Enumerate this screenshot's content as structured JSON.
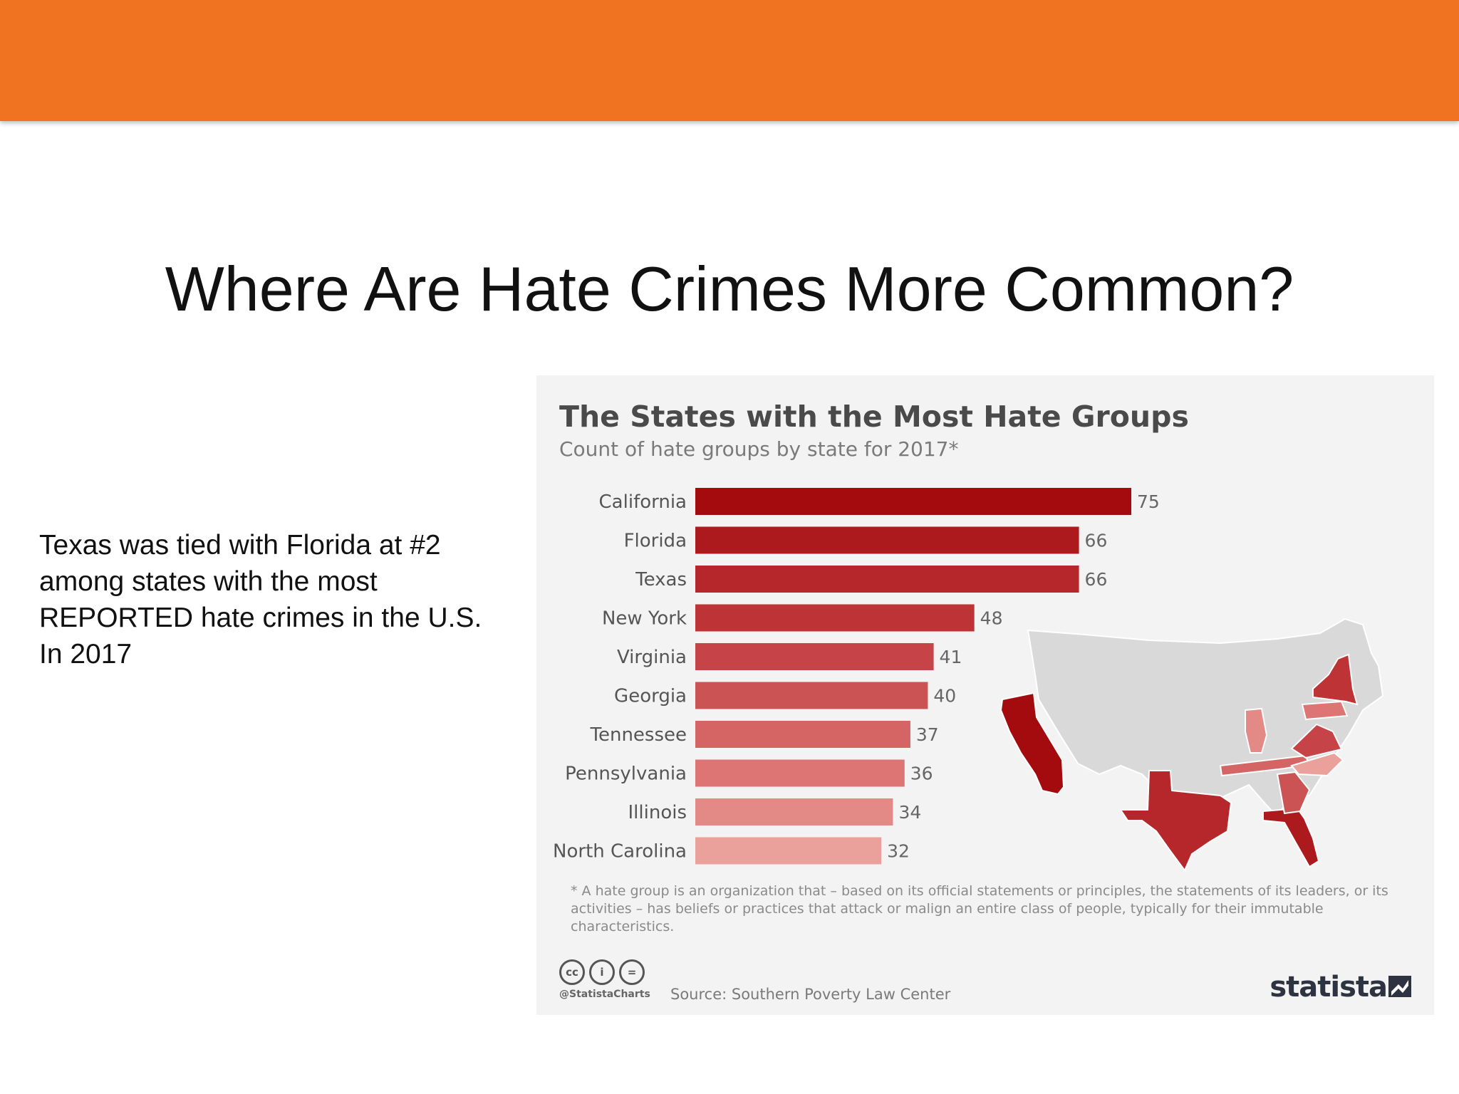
{
  "slide": {
    "title": "Where Are Hate Crimes More Common?",
    "text_lines": [
      "Texas was tied with Florida at #2",
      "among states with the most",
      "REPORTED hate crimes in the U.S.",
      "In 2017"
    ],
    "accent_color": "#f07322"
  },
  "chart_data": {
    "type": "bar",
    "orientation": "horizontal",
    "title": "The States with the Most Hate Groups",
    "subtitle": "Count of hate groups by state for 2017*",
    "categories": [
      "California",
      "Florida",
      "Texas",
      "New York",
      "Virginia",
      "Georgia",
      "Tennessee",
      "Pennsylvania",
      "Illinois",
      "North Carolina"
    ],
    "values": [
      75,
      66,
      66,
      48,
      41,
      40,
      37,
      36,
      34,
      32
    ],
    "value_labels": [
      "75",
      "66",
      "66",
      "48",
      "41",
      "40",
      "37",
      "36",
      "34",
      "32"
    ],
    "bar_colors": [
      "#a30b0f",
      "#ad1a1e",
      "#b5272b",
      "#be3336",
      "#c64447",
      "#cc5354",
      "#d56565",
      "#dc7573",
      "#e38a87",
      "#eba19b"
    ],
    "xlim": [
      0,
      75
    ],
    "grid": false,
    "legend": "none",
    "footnote": "* A hate group is an organization that – based on its official statements or principles, the statements of its leaders, or its activities – has beliefs or practices that attack or malign an entire class of people, typically for their immutable characteristics.",
    "source": "Source: Southern Poverty Law Center",
    "handle": "@StatistaCharts",
    "brand": "statista",
    "map": {
      "highlighted_states": [
        "California",
        "Florida",
        "Texas",
        "New York",
        "Virginia",
        "Georgia",
        "Tennessee",
        "Pennsylvania",
        "Illinois",
        "North Carolina"
      ],
      "base_color": "#d9d9d9"
    }
  }
}
